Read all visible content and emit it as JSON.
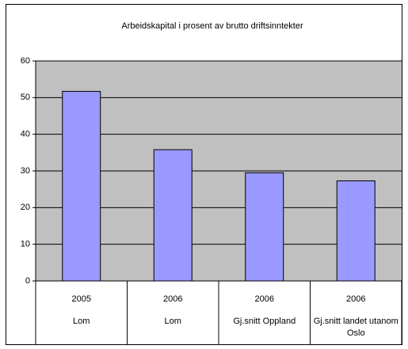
{
  "chart_data": {
    "type": "bar",
    "title": "Arbeidskapital i prosent av brutto driftsinntekter",
    "categories": [
      "2005",
      "2006",
      "2006",
      "2006"
    ],
    "groups": [
      "Lom",
      "Lom",
      "Gj.snitt Oppland",
      "Gj.snitt landet utanom Oslo"
    ],
    "values": [
      51.7,
      35.8,
      29.5,
      27.3
    ],
    "color": "#9999ff",
    "ylim": [
      0,
      60
    ],
    "yticks": [
      0,
      10,
      20,
      30,
      40,
      50,
      60
    ],
    "grid": true,
    "plot_background": "#c0c0c0"
  }
}
